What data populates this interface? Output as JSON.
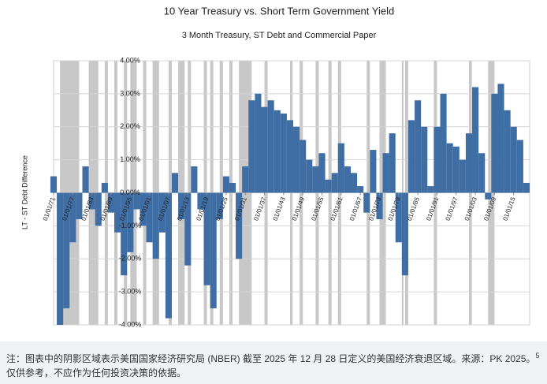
{
  "chart_data": {
    "type": "bar",
    "title": "10 Year Treasury vs. Short Term Government Yield",
    "subtitle": "3 Month Treasury, ST Debt and Commercial Paper",
    "y_label": "LT - ST Debt Difference",
    "color": "#3f6ea5",
    "recession_color": "#c8c8c8",
    "grid": true,
    "xlim": [
      1871,
      2020
    ],
    "ylim": [
      -4,
      4
    ],
    "yticks": [
      {
        "value": -4,
        "label": "-4.00%"
      },
      {
        "value": -3,
        "label": "-3.00%"
      },
      {
        "value": -2,
        "label": "-2.00%"
      },
      {
        "value": -1,
        "label": "-1.00%"
      },
      {
        "value": 0,
        "label": "0.00%"
      },
      {
        "value": 1,
        "label": "1.00%"
      },
      {
        "value": 2,
        "label": "2.00%"
      },
      {
        "value": 3,
        "label": "3.00%"
      },
      {
        "value": 4,
        "label": "4.00%"
      }
    ],
    "xticks": [
      {
        "value": 1871,
        "label": "01/01/71"
      },
      {
        "value": 1877,
        "label": "01/01/77"
      },
      {
        "value": 1883,
        "label": "01/01/83"
      },
      {
        "value": 1889,
        "label": "01/01/89"
      },
      {
        "value": 1895,
        "label": "01/01/95"
      },
      {
        "value": 1901,
        "label": "01/01/01"
      },
      {
        "value": 1907,
        "label": "01/01/07"
      },
      {
        "value": 1913,
        "label": "01/01/13"
      },
      {
        "value": 1919,
        "label": "01/01/19"
      },
      {
        "value": 1925,
        "label": "01/01/25"
      },
      {
        "value": 1931,
        "label": "01/01/31"
      },
      {
        "value": 1937,
        "label": "01/01/37"
      },
      {
        "value": 1943,
        "label": "01/01/43"
      },
      {
        "value": 1949,
        "label": "01/01/49"
      },
      {
        "value": 1955,
        "label": "01/01/55"
      },
      {
        "value": 1961,
        "label": "01/01/61"
      },
      {
        "value": 1967,
        "label": "01/01/67"
      },
      {
        "value": 1973,
        "label": "01/01/73"
      },
      {
        "value": 1979,
        "label": "01/01/79"
      },
      {
        "value": 1985,
        "label": "01/01/85"
      },
      {
        "value": 1991,
        "label": "01/01/91"
      },
      {
        "value": 1997,
        "label": "01/01/97"
      },
      {
        "value": 2003,
        "label": "01/01/03"
      },
      {
        "value": 2009,
        "label": "01/01/09"
      },
      {
        "value": 2015,
        "label": "01/01/15"
      }
    ],
    "recessions": [
      [
        1873,
        1879
      ],
      [
        1882,
        1885
      ],
      [
        1887,
        1888
      ],
      [
        1890,
        1891
      ],
      [
        1893,
        1894
      ],
      [
        1895,
        1897
      ],
      [
        1899,
        1900
      ],
      [
        1902,
        1904
      ],
      [
        1907,
        1908
      ],
      [
        1910,
        1912
      ],
      [
        1913,
        1914
      ],
      [
        1918,
        1919
      ],
      [
        1920,
        1921
      ],
      [
        1923,
        1924
      ],
      [
        1926,
        1927
      ],
      [
        1929,
        1933
      ],
      [
        1937,
        1938
      ],
      [
        1945,
        1945.8
      ],
      [
        1948,
        1949
      ],
      [
        1953,
        1954
      ],
      [
        1957,
        1958
      ],
      [
        1960,
        1961
      ],
      [
        1969,
        1970
      ],
      [
        1973,
        1975
      ],
      [
        1980,
        1980.5
      ],
      [
        1981,
        1982
      ],
      [
        1990,
        1991
      ],
      [
        2001,
        2001.9
      ],
      [
        2007,
        2009
      ]
    ],
    "x": [
      1871,
      1873,
      1875,
      1877,
      1879,
      1881,
      1883,
      1885,
      1887,
      1889,
      1891,
      1893,
      1895,
      1897,
      1899,
      1901,
      1903,
      1905,
      1907,
      1909,
      1911,
      1913,
      1915,
      1917,
      1919,
      1921,
      1923,
      1925,
      1927,
      1929,
      1931,
      1933,
      1935,
      1937,
      1939,
      1941,
      1943,
      1945,
      1947,
      1949,
      1951,
      1953,
      1955,
      1957,
      1959,
      1961,
      1963,
      1965,
      1967,
      1969,
      1971,
      1973,
      1975,
      1977,
      1979,
      1981,
      1983,
      1985,
      1987,
      1989,
      1991,
      1993,
      1995,
      1997,
      1999,
      2001,
      2003,
      2005,
      2007,
      2009,
      2011,
      2013,
      2015,
      2017,
      2019
    ],
    "values": [
      0.5,
      -4.0,
      -3.5,
      -1.5,
      -0.8,
      0.8,
      -0.5,
      -1.0,
      0.3,
      -0.6,
      -1.2,
      -2.5,
      -1.8,
      -0.5,
      -1.0,
      -1.5,
      -2.0,
      -1.2,
      -3.8,
      0.6,
      -0.8,
      -2.2,
      0.8,
      -0.5,
      -2.8,
      -3.5,
      -0.8,
      0.5,
      0.3,
      -2.0,
      0.8,
      2.8,
      3.0,
      2.6,
      2.8,
      2.5,
      2.4,
      2.2,
      2.0,
      1.6,
      1.0,
      0.8,
      1.2,
      0.4,
      0.6,
      1.5,
      0.8,
      0.6,
      0.2,
      -0.6,
      1.3,
      -0.8,
      1.2,
      1.8,
      -1.5,
      -2.5,
      2.2,
      2.8,
      2.0,
      0.2,
      2.0,
      3.0,
      1.5,
      1.4,
      1.0,
      1.8,
      3.2,
      1.2,
      -0.2,
      3.0,
      3.3,
      2.5,
      2.0,
      1.6,
      0.3
    ]
  },
  "note": {
    "text": "注：图表中的阴影区域表示美国国家经济研究局 (NBER) 截至 2025 年 12 月 28 日定义的美国经济衰退区域。来源：PK 2025。",
    "ref": "5",
    "text2": "仅供参考，不应作为任何投资决策的依据。"
  }
}
